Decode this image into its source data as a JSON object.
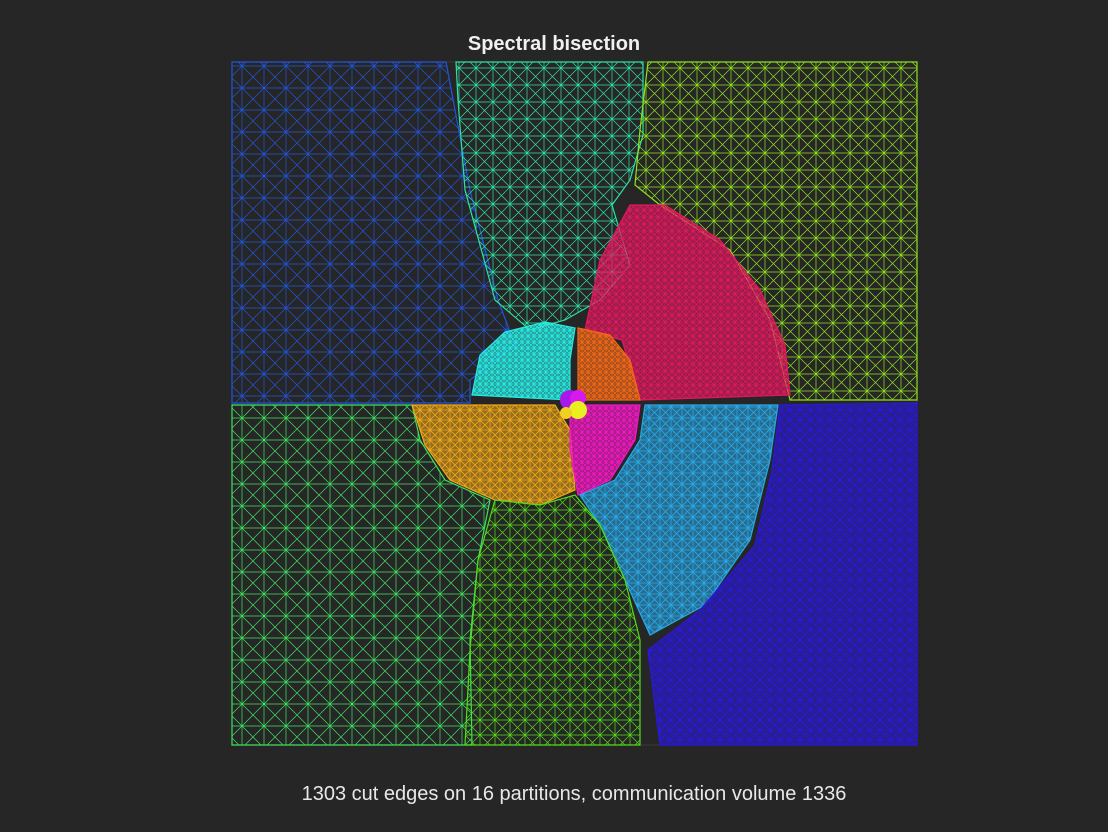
{
  "title": "Spectral bisection",
  "caption": "1303 cut edges on 16 partitions, communication volume 1336",
  "background": "#262626",
  "partition_colors": {
    "top_left": "#2155d9",
    "top_center": "#2fe0a2",
    "top_right": "#8fe020",
    "bottom_left": "#3fe060",
    "bottom_center": "#52dc18",
    "bottom_right": "#2a18d8",
    "pink": "#e0185e",
    "light_blue": "#28a8e8",
    "cyan": "#28e8e0",
    "orange_red": "#f06818",
    "amber": "#f0a818",
    "magenta": "#f018c0",
    "yellow": "#e8f020",
    "purple": "#a818e8",
    "violet": "#d818f0",
    "gold": "#f0d020"
  }
}
